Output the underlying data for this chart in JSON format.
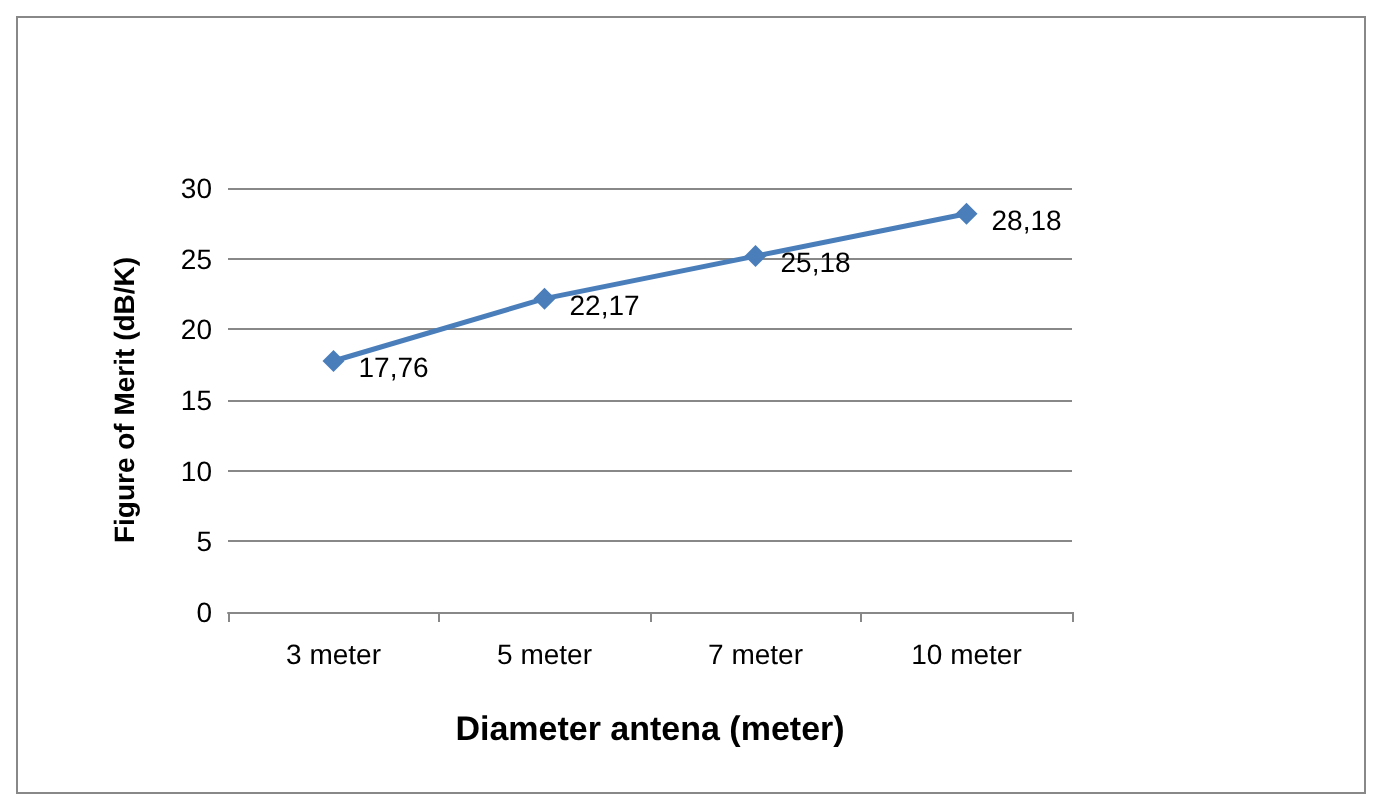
{
  "chart_data": {
    "type": "line",
    "xlabel": "Diameter antena (meter)",
    "ylabel": "Figure of Merit (dB/K)",
    "categories": [
      "3 meter",
      "5 meter",
      "7 meter",
      "10 meter"
    ],
    "series": [
      {
        "color": "#4a7ebb",
        "values": [
          17.76,
          22.17,
          25.18,
          28.18
        ],
        "value_labels": [
          "17,76",
          "22,17",
          "25,18",
          "28,18"
        ]
      }
    ],
    "ylim": [
      0,
      30
    ],
    "yticks": [
      0,
      5,
      10,
      15,
      20,
      25,
      30
    ],
    "grid": "y",
    "marker": "diamond",
    "line_style": "solid"
  }
}
